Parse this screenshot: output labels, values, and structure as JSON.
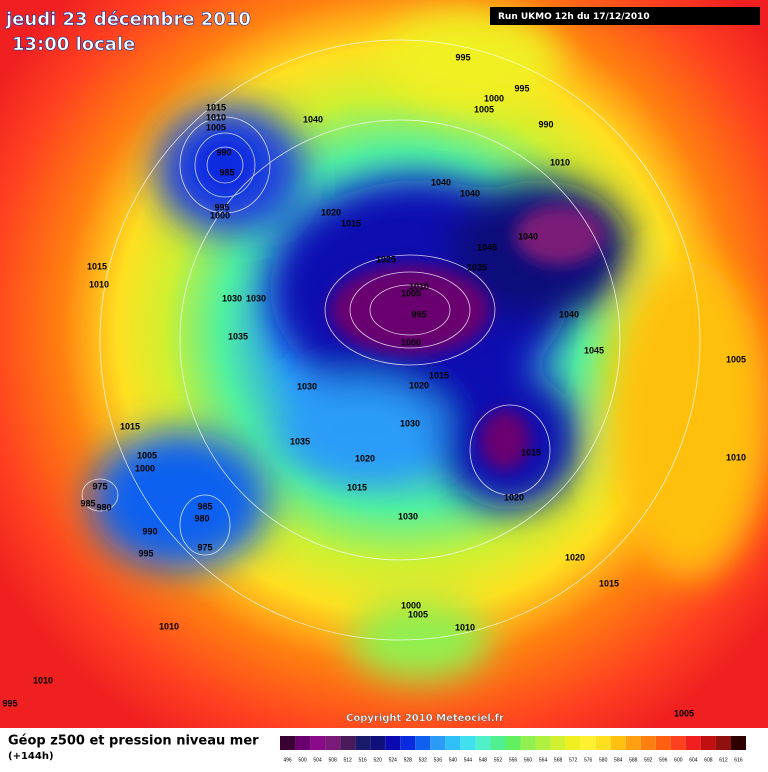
{
  "header": {
    "date": "jeudi 23 décembre 2010",
    "time": "13:00 locale",
    "run": "Run UKMO 12h du 17/12/2010"
  },
  "copyright": "Copyright 2010 Meteociel.fr",
  "footer": {
    "title": "Géop z500 et pression niveau mer",
    "lead": "(+144h)"
  },
  "colorbar": {
    "values": [
      496,
      500,
      504,
      508,
      512,
      516,
      520,
      524,
      528,
      532,
      536,
      540,
      544,
      548,
      552,
      556,
      560,
      564,
      568,
      572,
      576,
      580,
      584,
      588,
      592,
      596,
      600,
      604,
      608,
      612,
      616
    ],
    "colors": [
      "#3a0033",
      "#6a0070",
      "#8a0a8a",
      "#7a1a78",
      "#4a1a5a",
      "#1a1a6a",
      "#10107a",
      "#0a0ab0",
      "#0a2ae0",
      "#1060f0",
      "#2a9cf8",
      "#30c0f8",
      "#40e0f0",
      "#50f0c8",
      "#50f090",
      "#60f060",
      "#90f050",
      "#b0f040",
      "#d0f030",
      "#f0f020",
      "#fff030",
      "#ffe020",
      "#ffc010",
      "#ffa010",
      "#ff8010",
      "#ff6010",
      "#ff4020",
      "#f02020",
      "#c01010",
      "#901010",
      "#300000"
    ]
  },
  "pressure_labels": [
    995,
    995,
    1000,
    1005,
    990,
    1040,
    1015,
    1010,
    1005,
    990,
    985,
    995,
    1000,
    1010,
    1040,
    1040,
    1020,
    1015,
    1040,
    1045,
    1025,
    1035,
    1010,
    1005,
    995,
    1000,
    1015,
    1010,
    1030,
    1030,
    1035,
    1040,
    1045,
    1005,
    1030,
    1020,
    1015,
    1030,
    1015,
    1005,
    1000,
    1035,
    1020,
    1015,
    1015,
    1010,
    975,
    985,
    980,
    1020,
    985,
    980,
    990,
    975,
    995,
    1030,
    1020,
    1015,
    1000,
    1005,
    1010,
    1010,
    1010,
    995,
    1005
  ]
}
